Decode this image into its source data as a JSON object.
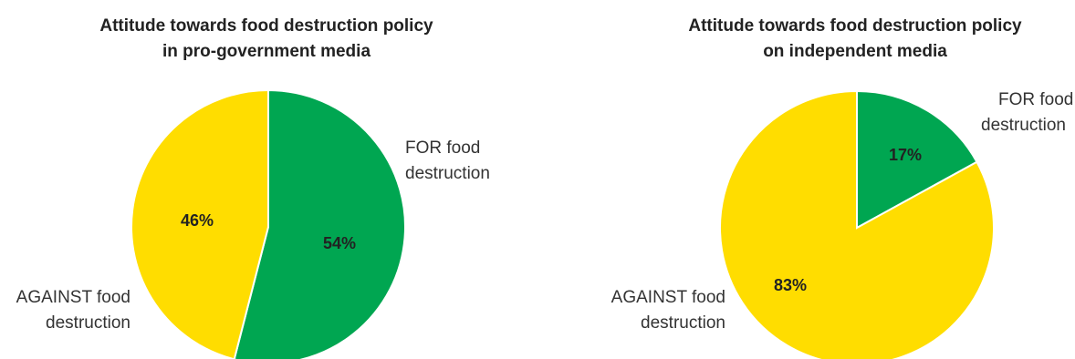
{
  "chart_data": [
    {
      "type": "pie",
      "title_lines": [
        "Attitude towards food destruction policy",
        "in pro-government media"
      ],
      "slices": [
        {
          "category_lines": [
            "FOR food",
            "destruction"
          ],
          "value": 54,
          "label": "54%",
          "color": "#00a651"
        },
        {
          "category_lines": [
            "AGAINST food",
            "destruction"
          ],
          "value": 46,
          "label": "46%",
          "color": "#ffdd00"
        }
      ],
      "start_angle_deg": 0,
      "direction": "clockwise",
      "legend": "none"
    },
    {
      "type": "pie",
      "title_lines": [
        "Attitude towards food destruction policy",
        "on independent media"
      ],
      "slices": [
        {
          "category_lines": [
            "FOR food",
            "destruction"
          ],
          "value": 17,
          "label": "17%",
          "color": "#00a651"
        },
        {
          "category_lines": [
            "AGAINST food",
            "destruction"
          ],
          "value": 83,
          "label": "83%",
          "color": "#ffdd00"
        }
      ],
      "start_angle_deg": 0,
      "direction": "clockwise",
      "legend": "none"
    }
  ]
}
